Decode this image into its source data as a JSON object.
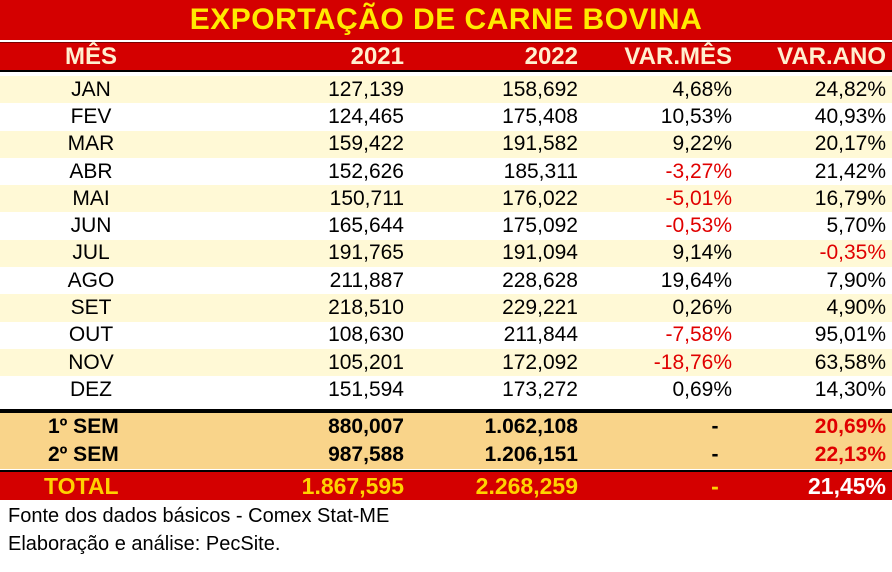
{
  "chart_data": {
    "type": "table",
    "title": "EXPORTAÇÃO DE CARNE BOVINA",
    "columns": [
      "MÊS",
      "2021",
      "2022",
      "VAR.MÊS",
      "VAR.ANO"
    ],
    "rows": [
      {
        "mes": "JAN",
        "y2021": "127,139",
        "y2022": "158,692",
        "var_mes": "4,68%",
        "var_ano": "24,82%"
      },
      {
        "mes": "FEV",
        "y2021": "124,465",
        "y2022": "175,408",
        "var_mes": "10,53%",
        "var_ano": "40,93%"
      },
      {
        "mes": "MAR",
        "y2021": "159,422",
        "y2022": "191,582",
        "var_mes": "9,22%",
        "var_ano": "20,17%"
      },
      {
        "mes": "ABR",
        "y2021": "152,626",
        "y2022": "185,311",
        "var_mes": "-3,27%",
        "var_ano": "21,42%"
      },
      {
        "mes": "MAI",
        "y2021": "150,711",
        "y2022": "176,022",
        "var_mes": "-5,01%",
        "var_ano": "16,79%"
      },
      {
        "mes": "JUN",
        "y2021": "165,644",
        "y2022": "175,092",
        "var_mes": "-0,53%",
        "var_ano": "5,70%"
      },
      {
        "mes": "JUL",
        "y2021": "191,765",
        "y2022": "191,094",
        "var_mes": "9,14%",
        "var_ano": "-0,35%"
      },
      {
        "mes": "AGO",
        "y2021": "211,887",
        "y2022": "228,628",
        "var_mes": "19,64%",
        "var_ano": "7,90%"
      },
      {
        "mes": "SET",
        "y2021": "218,510",
        "y2022": "229,221",
        "var_mes": "0,26%",
        "var_ano": "4,90%"
      },
      {
        "mes": "OUT",
        "y2021": "108,630",
        "y2022": "211,844",
        "var_mes": "-7,58%",
        "var_ano": "95,01%"
      },
      {
        "mes": "NOV",
        "y2021": "105,201",
        "y2022": "172,092",
        "var_mes": "-18,76%",
        "var_ano": "63,58%"
      },
      {
        "mes": "DEZ",
        "y2021": "151,594",
        "y2022": "173,272",
        "var_mes": "0,69%",
        "var_ano": "14,30%"
      }
    ],
    "summary": [
      {
        "mes": "1º SEM",
        "y2021": "880,007",
        "y2022": "1.062,108",
        "var_mes": "-",
        "var_ano": "20,69%"
      },
      {
        "mes": "2º SEM",
        "y2021": "987,588",
        "y2022": "1.206,151",
        "var_mes": "-",
        "var_ano": "22,13%"
      }
    ],
    "total": {
      "mes": "TOTAL",
      "y2021": "1.867,595",
      "y2022": "2.268,259",
      "var_mes": "-",
      "var_ano": "21,45%"
    },
    "negative_color": "#e00000",
    "header_color": "#d40000",
    "title_color": "#ffea00"
  },
  "footer": {
    "source": "Fonte dos dados básicos - Comex Stat-ME",
    "credit": "Elaboração e análise: PecSite."
  }
}
